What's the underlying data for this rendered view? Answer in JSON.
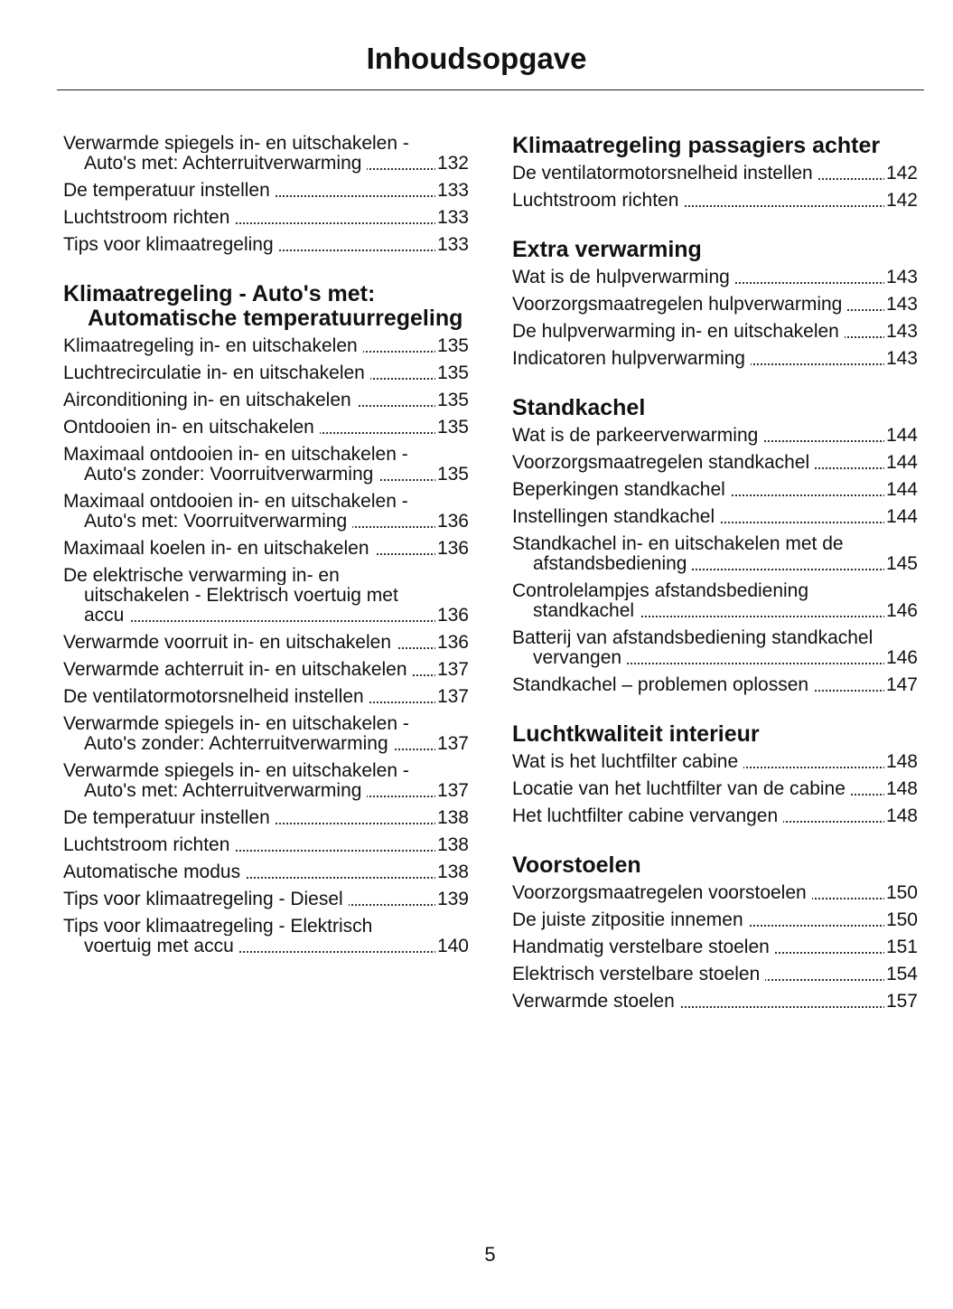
{
  "header": {
    "title": "Inhoudsopgave"
  },
  "columns": [
    {
      "sections": [
        {
          "entries": [
            {
              "text": "Verwarmde spiegels in- en uitschakelen - Auto's met: Achterruitverwarming",
              "page": 132
            },
            {
              "text": "De temperatuur instellen",
              "page": 133
            },
            {
              "text": "Luchtstroom richten",
              "page": 133
            },
            {
              "text": "Tips voor klimaatregeling",
              "page": 133
            }
          ]
        },
        {
          "heading": "Klimaatregeling - Auto's met: Automatische temperatuur­regeling",
          "entries": [
            {
              "text": "Klimaatregeling in- en uitschakelen",
              "page": 135
            },
            {
              "text": "Luchtrecirculatie in- en uitschakelen",
              "page": 135
            },
            {
              "text": "Airconditioning in- en uitschakelen",
              "page": 135
            },
            {
              "text": "Ontdooien in- en uitschakelen",
              "page": 135
            },
            {
              "text": "Maximaal ontdooien in- en uitschakelen - Auto's zonder: Voorruitverwarming",
              "page": 135
            },
            {
              "text": "Maximaal ontdooien in- en uitschakelen - Auto's met: Voorruitverwarming",
              "page": 136
            },
            {
              "text": "Maximaal koelen in- en uitschakelen",
              "page": 136
            },
            {
              "text": "De elektrische verwarming in- en uitschakelen - Elektrisch voertuig met accu",
              "page": 136
            },
            {
              "text": "Verwarmde voorruit in- en uitschakelen",
              "page": 136
            },
            {
              "text": "Verwarmde achterruit in- en uitschakelen",
              "page": 137
            },
            {
              "text": "De ventilatormotorsnelheid instellen",
              "page": 137
            },
            {
              "text": "Verwarmde spiegels in- en uitschakelen - Auto's zonder: Achterruitverwarming",
              "page": 137
            },
            {
              "text": "Verwarmde spiegels in- en uitschakelen - Auto's met: Achterruitverwarming",
              "page": 137
            },
            {
              "text": "De temperatuur instellen",
              "page": 138
            },
            {
              "text": "Luchtstroom richten",
              "page": 138
            },
            {
              "text": "Automatische modus",
              "page": 138
            },
            {
              "text": "Tips voor klimaatregeling - Diesel",
              "page": 139
            },
            {
              "text": "Tips voor klimaatregeling - Elektrisch voertuig met accu",
              "page": 140
            }
          ]
        }
      ]
    },
    {
      "sections": [
        {
          "heading": "Klimaatregeling passagiers achter",
          "entries": [
            {
              "text": "De ventilatormotorsnelheid instellen",
              "page": 142
            },
            {
              "text": "Luchtstroom richten",
              "page": 142
            }
          ]
        },
        {
          "heading": "Extra verwarming",
          "entries": [
            {
              "text": "Wat is de hulpverwarming",
              "page": 143
            },
            {
              "text": "Voorzorgsmaatregelen hulpverwarming",
              "page": 143
            },
            {
              "text": "De hulpverwarming in- en uitschakelen",
              "page": 143
            },
            {
              "text": "Indicatoren hulpverwarming",
              "page": 143
            }
          ]
        },
        {
          "heading": "Standkachel",
          "entries": [
            {
              "text": "Wat is de parkeerverwarming",
              "page": 144
            },
            {
              "text": "Voorzorgsmaatregelen standkachel",
              "page": 144
            },
            {
              "text": "Beperkingen standkachel",
              "page": 144
            },
            {
              "text": "Instellingen standkachel",
              "page": 144
            },
            {
              "text": "Standkachel in- en uitschakelen met de afstandsbediening",
              "page": 145
            },
            {
              "text": "Controlelampjes afstandsbediening standkachel",
              "page": 146
            },
            {
              "text": "Batterij van afstandsbediening standkachel vervangen",
              "page": 146
            },
            {
              "text": "Standkachel – problemen oplossen",
              "page": 147
            }
          ]
        },
        {
          "heading": "Luchtkwaliteit interieur",
          "entries": [
            {
              "text": "Wat is het luchtfilter cabine",
              "page": 148
            },
            {
              "text": "Locatie van het luchtfilter van de cabine",
              "page": 148
            },
            {
              "text": "Het luchtfilter cabine vervangen",
              "page": 148
            }
          ]
        },
        {
          "heading": "Voorstoelen",
          "entries": [
            {
              "text": "Voorzorgsmaatregelen voorstoelen",
              "page": 150
            },
            {
              "text": "De juiste zitpositie innemen",
              "page": 150
            },
            {
              "text": "Handmatig verstelbare stoelen",
              "page": 151
            },
            {
              "text": "Elektrisch verstelbare stoelen",
              "page": 154
            },
            {
              "text": "Verwarmde stoelen",
              "page": 157
            }
          ]
        }
      ]
    }
  ],
  "footer": {
    "page_number": 5
  }
}
